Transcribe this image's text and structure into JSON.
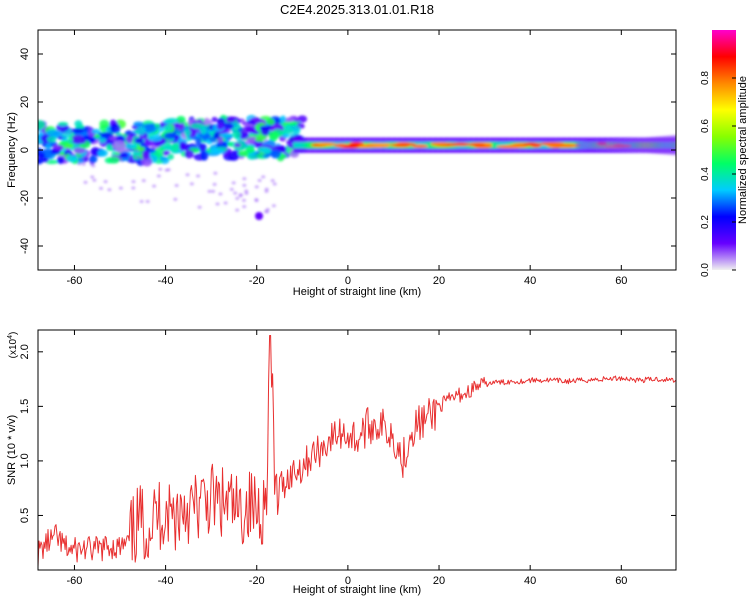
{
  "title": "C2E4.2025.313.01.01.R18",
  "chart_data": [
    {
      "type": "heatmap",
      "name": "spectrogram",
      "xlabel": "Height of straight line (km)",
      "ylabel": "Frequency (Hz)",
      "xlim": [
        -68,
        72
      ],
      "ylim": [
        -50,
        50
      ],
      "xticks": [
        -60,
        -40,
        -20,
        0,
        20,
        40,
        60
      ],
      "yticks": [
        -40,
        -20,
        0,
        20,
        40
      ],
      "colorbar": {
        "label": "Normalized spectral amplitude",
        "range": [
          0.0,
          1.0
        ],
        "ticks": [
          0.0,
          0.2,
          0.4,
          0.6,
          0.8
        ],
        "colors": [
          "#f0f0f0",
          "#6600ff",
          "#0000ff",
          "#00ccff",
          "#00ff66",
          "#88ff00",
          "#ffff00",
          "#ff8800",
          "#ff0000",
          "#ff00cc"
        ]
      }
    },
    {
      "type": "line",
      "name": "snr",
      "xlabel": "Height of straight line (km)",
      "ylabel": "SNR (10 * v/v)",
      "yunit": "(x10",
      "yunit_exp": "4",
      "yunit_close": ")",
      "xlim": [
        -68,
        72
      ],
      "ylim": [
        0,
        2.2
      ],
      "xticks": [
        -60,
        -40,
        -20,
        0,
        20,
        40,
        60
      ],
      "yticks": [
        0.5,
        1.0,
        1.5,
        2.0
      ],
      "line_color": "#e83030",
      "series": [
        {
          "name": "SNR",
          "x": [
            -68,
            -66,
            -64,
            -62,
            -60,
            -58,
            -56,
            -54,
            -52,
            -50,
            -48,
            -46,
            -44,
            -42,
            -40,
            -38,
            -36,
            -34,
            -32,
            -30,
            -28,
            -26,
            -24,
            -22,
            -20,
            -18,
            -17,
            -16,
            -14,
            -12,
            -10,
            -8,
            -6,
            -4,
            -2,
            0,
            2,
            4,
            6,
            8,
            10,
            12,
            14,
            16,
            18,
            20,
            22,
            24,
            26,
            28,
            30,
            32,
            34,
            36,
            38,
            40,
            44,
            48,
            52,
            56,
            60,
            64,
            68,
            72
          ],
          "values": [
            0.15,
            0.25,
            0.3,
            0.2,
            0.18,
            0.2,
            0.18,
            0.2,
            0.22,
            0.2,
            0.25,
            0.45,
            0.4,
            0.5,
            0.55,
            0.5,
            0.6,
            0.55,
            0.6,
            0.65,
            0.6,
            0.6,
            0.5,
            0.6,
            0.55,
            0.6,
            2.15,
            0.7,
            0.8,
            0.9,
            0.95,
            1.05,
            1.1,
            1.2,
            1.25,
            1.25,
            1.2,
            1.3,
            1.35,
            1.3,
            1.25,
            1.0,
            1.3,
            1.35,
            1.4,
            1.5,
            1.55,
            1.6,
            1.62,
            1.68,
            1.7,
            1.72,
            1.72,
            1.73,
            1.73,
            1.74,
            1.74,
            1.73,
            1.74,
            1.75,
            1.76,
            1.74,
            1.75,
            1.74
          ]
        }
      ]
    }
  ]
}
